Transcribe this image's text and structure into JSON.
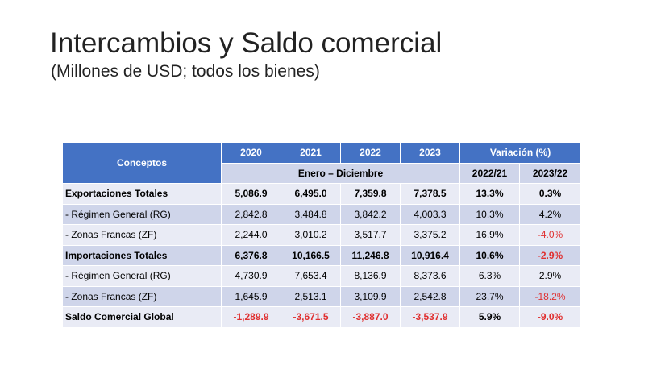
{
  "title": "Intercambios y Saldo comercial",
  "subtitle": "(Millones de USD; todos los bienes)",
  "table": {
    "concept_header": "Conceptos",
    "years": [
      "2020",
      "2021",
      "2022",
      "2023"
    ],
    "variation_header": "Variación (%)",
    "period_label": "Enero – Diciembre",
    "variation_years": [
      "2022/21",
      "2023/22"
    ],
    "rows": [
      {
        "concept": "Exportaciones Totales",
        "values": [
          "5,086.9",
          "6,495.0",
          "7,359.8",
          "7,378.5"
        ],
        "var": [
          "13.3%",
          "0.3%"
        ]
      },
      {
        "concept": " - Régimen General (RG)",
        "values": [
          "2,842.8",
          "3,484.8",
          "3,842.2",
          "4,003.3"
        ],
        "var": [
          "10.3%",
          "4.2%"
        ]
      },
      {
        "concept": " - Zonas Francas (ZF)",
        "values": [
          "2,244.0",
          "3,010.2",
          "3,517.7",
          "3,375.2"
        ],
        "var": [
          "16.9%",
          "-4.0%"
        ]
      },
      {
        "concept": "Importaciones Totales",
        "values": [
          "6,376.8",
          "10,166.5",
          "11,246.8",
          "10,916.4"
        ],
        "var": [
          "10.6%",
          "-2.9%"
        ]
      },
      {
        "concept": " - Régimen General (RG)",
        "values": [
          "4,730.9",
          "7,653.4",
          "8,136.9",
          "8,373.6"
        ],
        "var": [
          "6.3%",
          "2.9%"
        ]
      },
      {
        "concept": " - Zonas Francas (ZF)",
        "values": [
          "1,645.9",
          "2,513.1",
          "3,109.9",
          "2,542.8"
        ],
        "var": [
          "23.7%",
          "-18.2%"
        ]
      },
      {
        "concept": "Saldo Comercial Global",
        "values": [
          "-1,289.9",
          "-3,671.5",
          "-3,887.0",
          "-3,537.9"
        ],
        "var": [
          "5.9%",
          "-9.0%"
        ]
      }
    ]
  }
}
